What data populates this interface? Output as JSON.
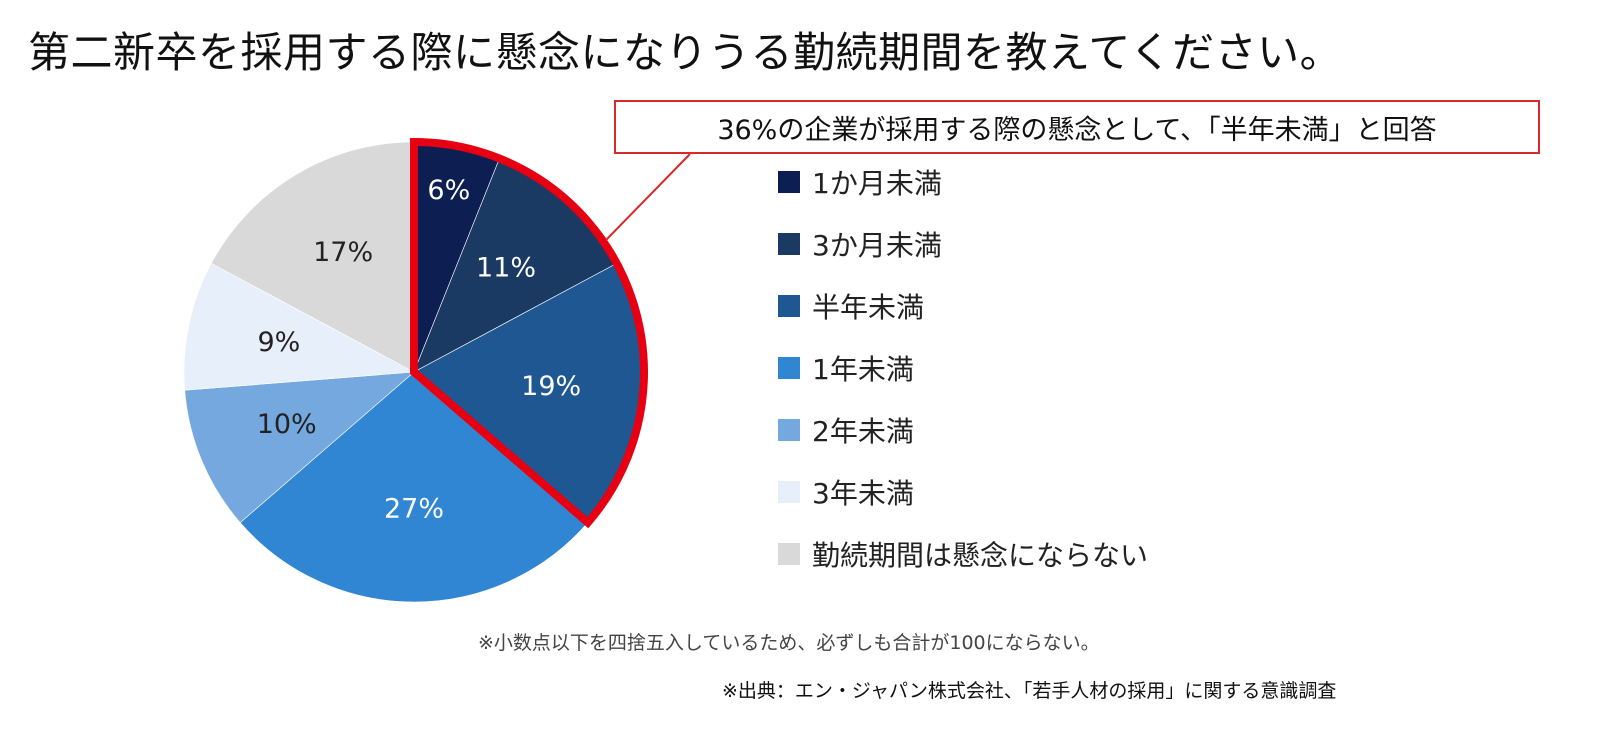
{
  "title": "第二新卒を採用する際に懸念になりうる勤続期間を教えてください。",
  "callout": "36%の企業が採用する際の懸念として、「半年未満」と回答",
  "note": "※小数点以下を四捨五入しているため、必ずしも合計が100にならない。",
  "source": "※出典：エン・ジャパン株式会社、「若手人材の採用」に関する意識調査",
  "chart_data": {
    "type": "pie",
    "title": "",
    "legend_position": "right",
    "highlight": {
      "categories": [
        "1か月未満",
        "3か月未満",
        "半年未満"
      ],
      "color": "#e60012"
    },
    "slices": [
      {
        "label": "1か月未満",
        "value": 6,
        "value_label": "6%",
        "color": "#0d1f52",
        "label_color": "#ffffff"
      },
      {
        "label": "3か月未満",
        "value": 11,
        "value_label": "11%",
        "color": "#1b3a63",
        "label_color": "#ffffff"
      },
      {
        "label": "半年未満",
        "value": 19,
        "value_label": "19%",
        "color": "#1f5792",
        "label_color": "#ffffff"
      },
      {
        "label": "1年未満",
        "value": 27,
        "value_label": "27%",
        "color": "#3186d3",
        "label_color": "#ffffff"
      },
      {
        "label": "2年未満",
        "value": 10,
        "value_label": "10%",
        "color": "#74a8de",
        "label_color": "#222222"
      },
      {
        "label": "3年未満",
        "value": 9,
        "value_label": "9%",
        "color": "#e7effa",
        "label_color": "#222222"
      },
      {
        "label": "勤続期間は懸念にならない",
        "value": 17,
        "value_label": "17%",
        "color": "#d9d9d9",
        "label_color": "#222222"
      }
    ]
  }
}
